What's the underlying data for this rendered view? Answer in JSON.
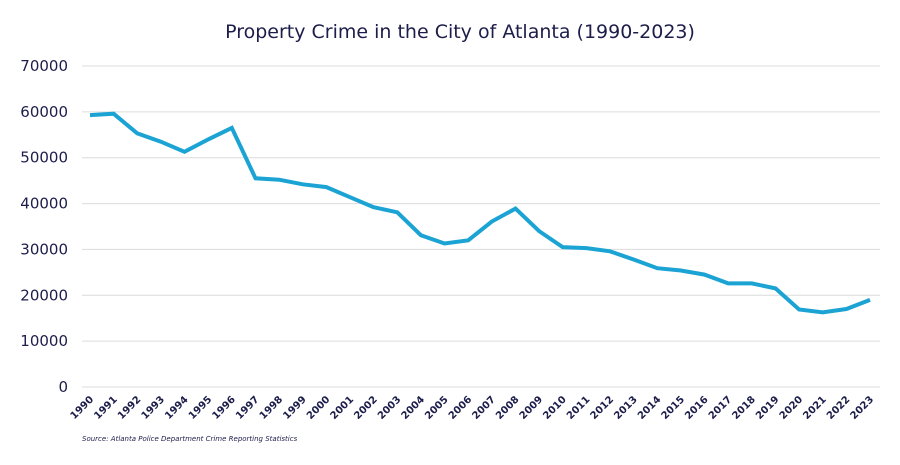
{
  "chart_data": {
    "type": "line",
    "title": "Property Crime in the City of Atlanta (1990-2023)",
    "xlabel": "",
    "ylabel": "",
    "ylim": [
      0,
      70000
    ],
    "yticks": [
      "0",
      "10000",
      "20000",
      "30000",
      "40000",
      "50000",
      "60000",
      "70000"
    ],
    "grid": true,
    "categories": [
      "1990",
      "1991",
      "1992",
      "1993",
      "1994",
      "1995",
      "1996",
      "1997",
      "1998",
      "1999",
      "2000",
      "2001",
      "2002",
      "2003",
      "2004",
      "2005",
      "2006",
      "2007",
      "2008",
      "2009",
      "2010",
      "2011",
      "2012",
      "2013",
      "2014",
      "2015",
      "2016",
      "2017",
      "2018",
      "2019",
      "2020",
      "2021",
      "2022",
      "2023"
    ],
    "series": [
      {
        "name": "Property Crime",
        "color": "#1ba3d4",
        "values": [
          59300,
          59600,
          55300,
          53500,
          51300,
          54000,
          56500,
          45500,
          45200,
          44200,
          43600,
          41400,
          39200,
          38100,
          33100,
          31300,
          32000,
          36100,
          38900,
          34000,
          30500,
          30300,
          29600,
          27800,
          25900,
          25400,
          24500,
          22600,
          22600,
          21500,
          16900,
          16300,
          17000,
          19000
        ]
      }
    ],
    "source": "Source: Atlanta Police Department Crime Reporting Statistics"
  }
}
